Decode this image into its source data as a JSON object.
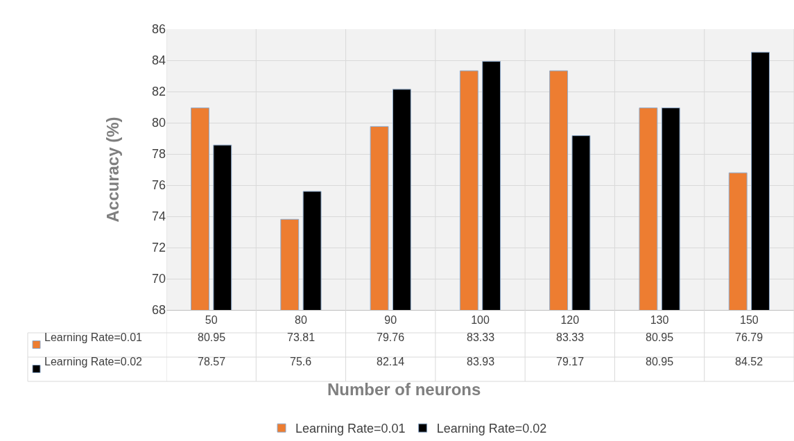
{
  "chart_data": {
    "type": "bar",
    "xlabel": "Number of neurons",
    "ylabel": "Accuracy (%)",
    "categories": [
      "50",
      "80",
      "90",
      "100",
      "120",
      "130",
      "150"
    ],
    "series": [
      {
        "name": "Learning Rate=0.01",
        "color": "#ed7d31",
        "values": [
          80.95,
          73.81,
          79.76,
          83.33,
          83.33,
          80.95,
          76.79
        ]
      },
      {
        "name": "Learning Rate=0.02",
        "color": "#000000",
        "values": [
          78.57,
          75.6,
          82.14,
          83.93,
          79.17,
          80.95,
          84.52
        ]
      }
    ],
    "ylim": [
      68,
      86
    ],
    "yticks": [
      68,
      70,
      72,
      74,
      76,
      78,
      80,
      82,
      84,
      86
    ],
    "grid": true,
    "legend": "bottom",
    "data_labels": true
  }
}
